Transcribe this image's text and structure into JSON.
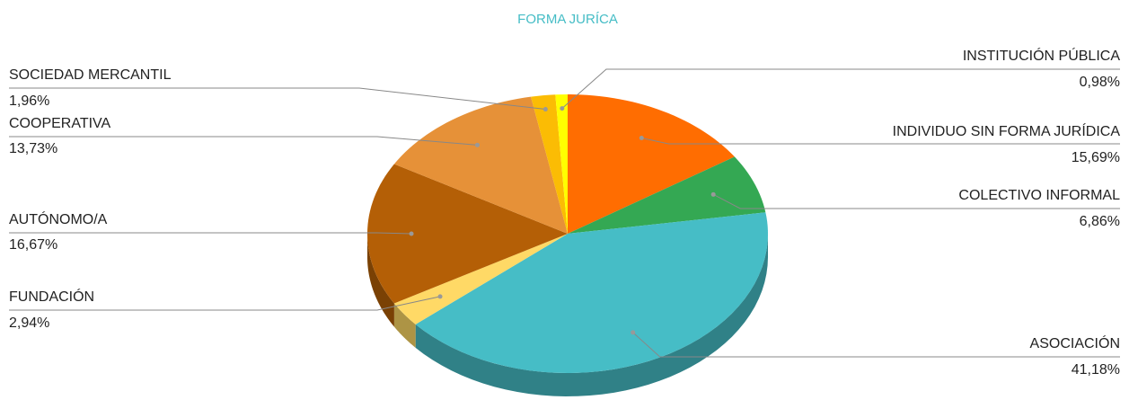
{
  "chart_data": {
    "type": "pie3d",
    "title": "FORMA JURÍCA",
    "categories": [
      "INDIVIDUO SIN FORMA JURÍDICA",
      "COLECTIVO INFORMAL",
      "ASOCIACIÓN",
      "FUNDACIÓN",
      "AUTÓNOMO/A",
      "COOPERATIVA",
      "SOCIEDAD MERCANTIL",
      "INSTITUCIÓN PÚBLICA"
    ],
    "values": [
      15.69,
      6.86,
      41.18,
      2.94,
      16.67,
      13.73,
      1.96,
      0.98
    ],
    "value_labels": [
      "15,69%",
      "6,86%",
      "41,18%",
      "2,94%",
      "16,67%",
      "13,73%",
      "1,96%",
      "0,98%"
    ],
    "colors": [
      "#ff6d01",
      "#34a853",
      "#46bdc6",
      "#ffd966",
      "#b45f06",
      "#e69138",
      "#fbbc04",
      "#ffff00"
    ]
  }
}
